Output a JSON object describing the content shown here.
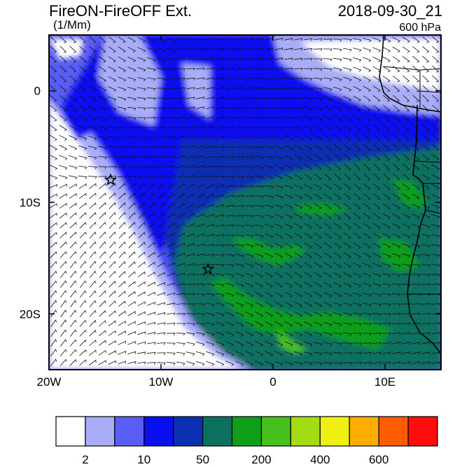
{
  "header": {
    "title": "FireON-FireOFF Ext.",
    "units": "(1/Mm)",
    "datetime": "2018-09-30_21",
    "level": "600 hPa"
  },
  "map": {
    "lon_range": [
      -20,
      15
    ],
    "lat_range": [
      -25,
      5
    ],
    "lon_ticks": [
      {
        "value": -20,
        "label": "20W"
      },
      {
        "value": -10,
        "label": "10W"
      },
      {
        "value": 0,
        "label": "0"
      },
      {
        "value": 10,
        "label": "10E"
      }
    ],
    "lat_ticks": [
      {
        "value": 0,
        "label": "0"
      },
      {
        "value": -10,
        "label": "10S"
      },
      {
        "value": -20,
        "label": "20S"
      }
    ],
    "markers": [
      {
        "name": "star-marker-1",
        "lon": -14.5,
        "lat": -8
      },
      {
        "name": "star-marker-2",
        "lon": -5.8,
        "lat": -16
      }
    ]
  },
  "colorbar": {
    "colors": [
      "#ffffff",
      "#a9adf7",
      "#5a5df5",
      "#0a0ff2",
      "#0a2fb2",
      "#0c7060",
      "#0e9e1a",
      "#46c01a",
      "#a4dc14",
      "#f0f010",
      "#ffae00",
      "#ff5c00",
      "#ff0c0c"
    ],
    "labels": [
      {
        "boundary": 1,
        "text": "2"
      },
      {
        "boundary": 3,
        "text": "10"
      },
      {
        "boundary": 5,
        "text": "50"
      },
      {
        "boundary": 7,
        "text": "200"
      },
      {
        "boundary": 9,
        "text": "400"
      },
      {
        "boundary": 11,
        "text": "600"
      }
    ]
  }
}
